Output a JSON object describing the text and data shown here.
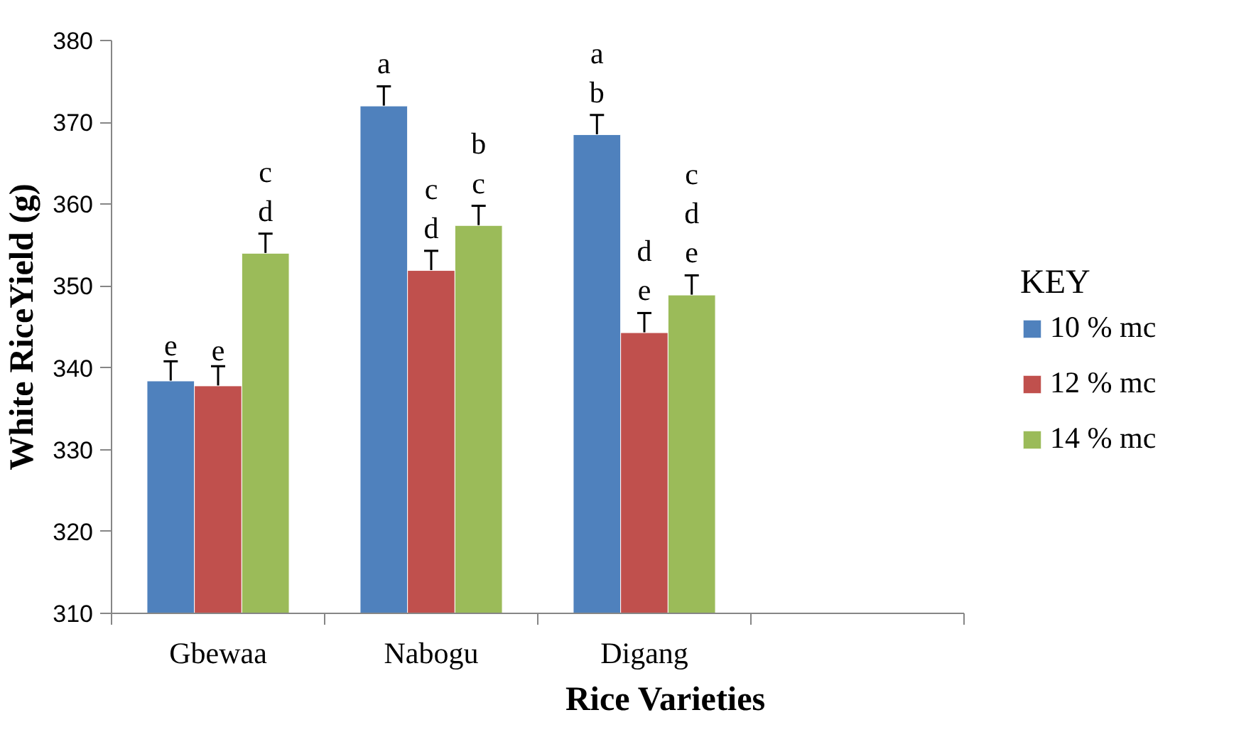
{
  "chart_data": {
    "type": "bar",
    "xlabel": "Rice Varieties",
    "ylabel": "White RiceYield (g)",
    "legend_title": "KEY",
    "categories": [
      "Gbewaa",
      "Nabogu",
      "Digang",
      null
    ],
    "series": [
      {
        "name": "10 % mc",
        "color": "#4f81bd",
        "values": [
          338.4,
          372.0,
          368.5,
          null
        ],
        "errors": [
          2.4,
          2.4,
          2.4,
          null
        ],
        "value_labels": [
          "e",
          "a",
          "a\nb",
          null
        ]
      },
      {
        "name": "12 % mc",
        "color": "#c0504d",
        "values": [
          337.8,
          351.9,
          344.3,
          null
        ],
        "errors": [
          2.4,
          2.4,
          2.4,
          null
        ],
        "value_labels": [
          "e",
          "c\nd",
          "d\ne",
          null
        ]
      },
      {
        "name": "14 % mc",
        "color": "#9bbb59",
        "values": [
          354.0,
          357.4,
          348.9,
          null
        ],
        "errors": [
          2.4,
          2.4,
          2.4,
          null
        ],
        "value_labels": [
          "c\nd",
          "b\nc",
          "c\nd\ne",
          null
        ]
      }
    ],
    "ylim": [
      310,
      380
    ],
    "yticks": [
      310,
      320,
      330,
      340,
      350,
      360,
      370,
      380
    ],
    "grid": false,
    "legend": "right"
  }
}
